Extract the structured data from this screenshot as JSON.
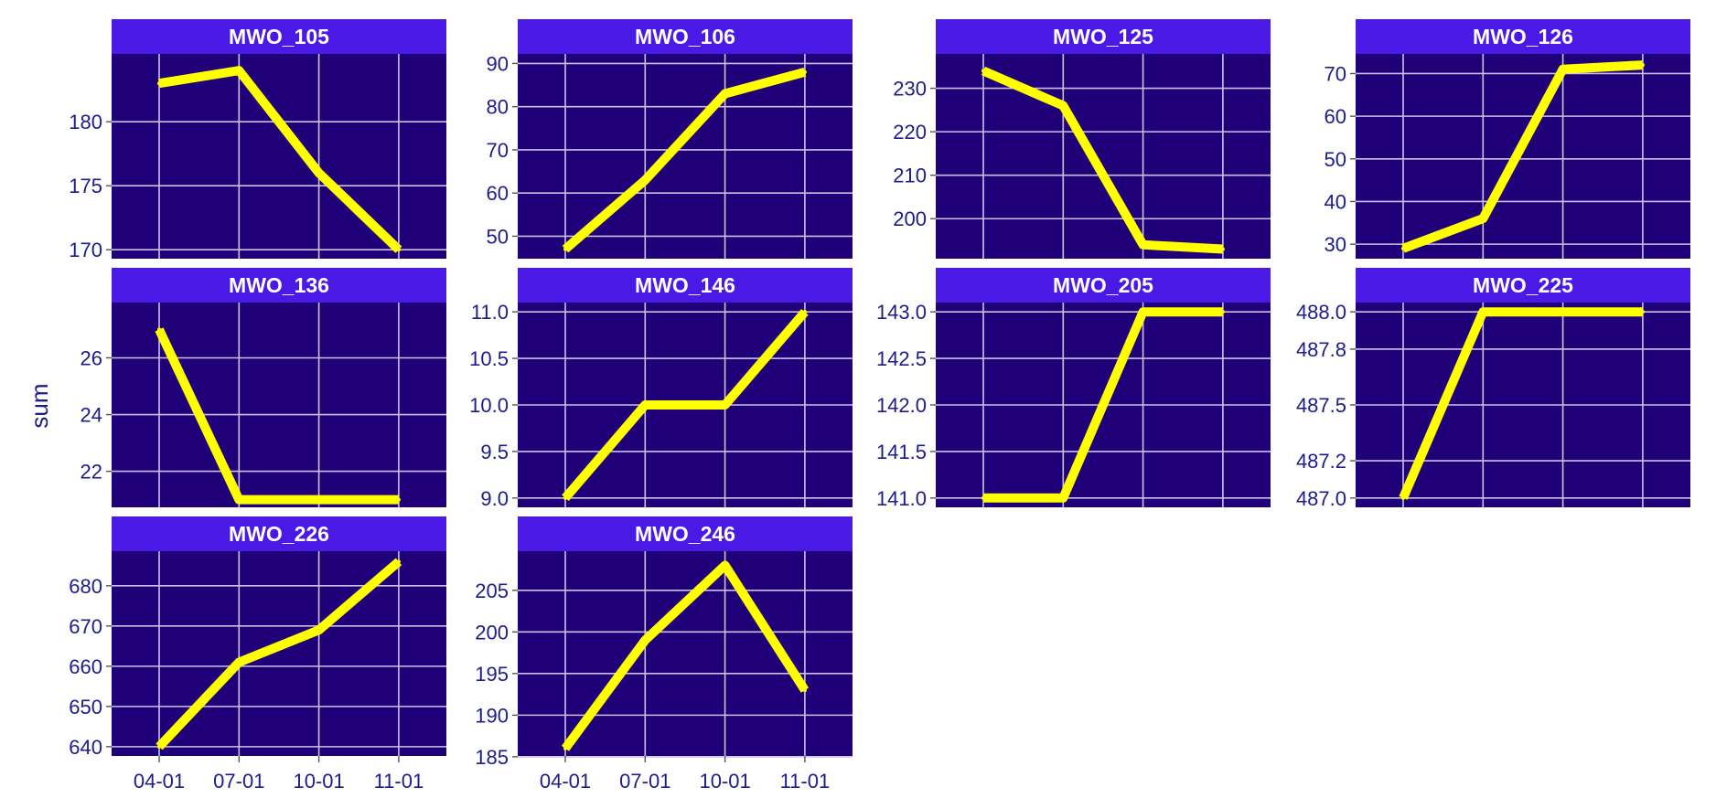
{
  "chart_data": {
    "type": "line",
    "facet": "small-multiples",
    "ylabel": "sum",
    "xlabel": "",
    "x_categories": [
      "04-01",
      "07-01",
      "10-01",
      "11-01"
    ],
    "grid": true,
    "colors": {
      "panel_background": "#1f0078",
      "strip_background": "#4a19e6",
      "strip_text": "#ffffff",
      "line": "#ffff00",
      "grid": "#c9c2e6",
      "axis_text": "#1c1c8c"
    },
    "panels": [
      {
        "name": "MWO_105",
        "values": [
          183,
          184,
          176,
          170
        ],
        "ylim": [
          169.3,
          185.3
        ],
        "yticks": [
          "170",
          "175",
          "180"
        ]
      },
      {
        "name": "MWO_106",
        "values": [
          47,
          63,
          83,
          88
        ],
        "ylim": [
          44.8,
          92.2
        ],
        "yticks": [
          "50",
          "60",
          "70",
          "80",
          "90"
        ]
      },
      {
        "name": "MWO_125",
        "values": [
          234,
          226,
          194,
          193
        ],
        "ylim": [
          190.8,
          237.9
        ],
        "yticks": [
          "200",
          "210",
          "220",
          "230"
        ]
      },
      {
        "name": "MWO_126",
        "values": [
          29,
          36,
          71,
          72
        ],
        "ylim": [
          26.6,
          74.6
        ],
        "yticks": [
          "30",
          "40",
          "50",
          "60",
          "70"
        ]
      },
      {
        "name": "MWO_136",
        "values": [
          27,
          21,
          21,
          21
        ],
        "ylim": [
          20.73,
          27.95
        ],
        "yticks": [
          "22",
          "24",
          "26"
        ]
      },
      {
        "name": "MWO_146",
        "values": [
          9,
          10,
          10,
          11
        ],
        "ylim": [
          8.9,
          11.1
        ],
        "yticks": [
          "9.0",
          "9.5",
          "10.0",
          "10.5",
          "11.0"
        ]
      },
      {
        "name": "MWO_205",
        "values": [
          141,
          141,
          143,
          143
        ],
        "ylim": [
          140.9,
          143.1
        ],
        "yticks": [
          "141.0",
          "141.5",
          "142.0",
          "142.5",
          "143.0"
        ]
      },
      {
        "name": "MWO_225",
        "values": [
          487,
          488,
          488,
          488
        ],
        "ylim": [
          486.95,
          488.05
        ],
        "yticks": [
          "487.0",
          "487.2",
          "487.5",
          "487.8",
          "488.0"
        ]
      },
      {
        "name": "MWO_226",
        "values": [
          640,
          661,
          669,
          686
        ],
        "ylim": [
          637.7,
          688.6
        ],
        "yticks": [
          "640",
          "650",
          "660",
          "670",
          "680"
        ]
      },
      {
        "name": "MWO_246",
        "values": [
          186,
          199,
          208,
          193
        ],
        "ylim": [
          185.1,
          209.7
        ],
        "yticks": [
          "185",
          "190",
          "195",
          "200",
          "205"
        ]
      }
    ]
  }
}
